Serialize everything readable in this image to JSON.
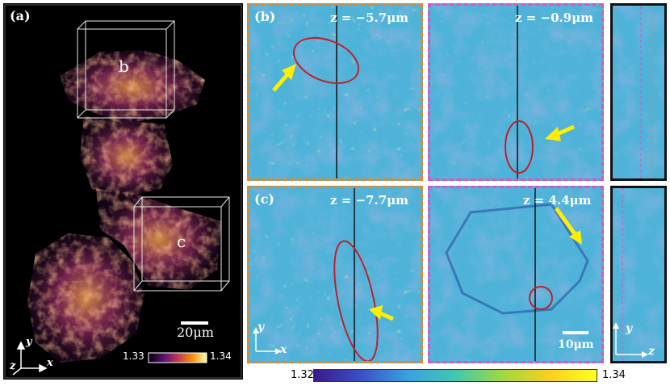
{
  "panel_a": {
    "label": "(a)",
    "box_b_label": "b",
    "box_c_label": "c",
    "scalebar": "20μm",
    "colorbar_min": "1.33",
    "colorbar_max": "1.34",
    "axes": {
      "y": "y",
      "z": "z",
      "x": "x"
    }
  },
  "panel_b": {
    "label": "(b)",
    "left_z": "z = −5.7μm",
    "right_z": "z = −0.9μm"
  },
  "panel_c": {
    "label": "(c)",
    "left_z": "z = −7.7μm",
    "right_z": "z = 4.4μm",
    "scalebar": "10μm"
  },
  "axes_xy": {
    "y": "y",
    "x": "x"
  },
  "axes_yz": {
    "y": "y",
    "z": "z"
  },
  "colorbar_bottom": {
    "min": "1.32",
    "max": "1.34"
  },
  "colors": {
    "orange_dash": "#e08a2a",
    "magenta_dash": "#d955c8",
    "ellipse": "#c0202a",
    "arrow": "#ffee00",
    "field": "#4fb3d9"
  }
}
